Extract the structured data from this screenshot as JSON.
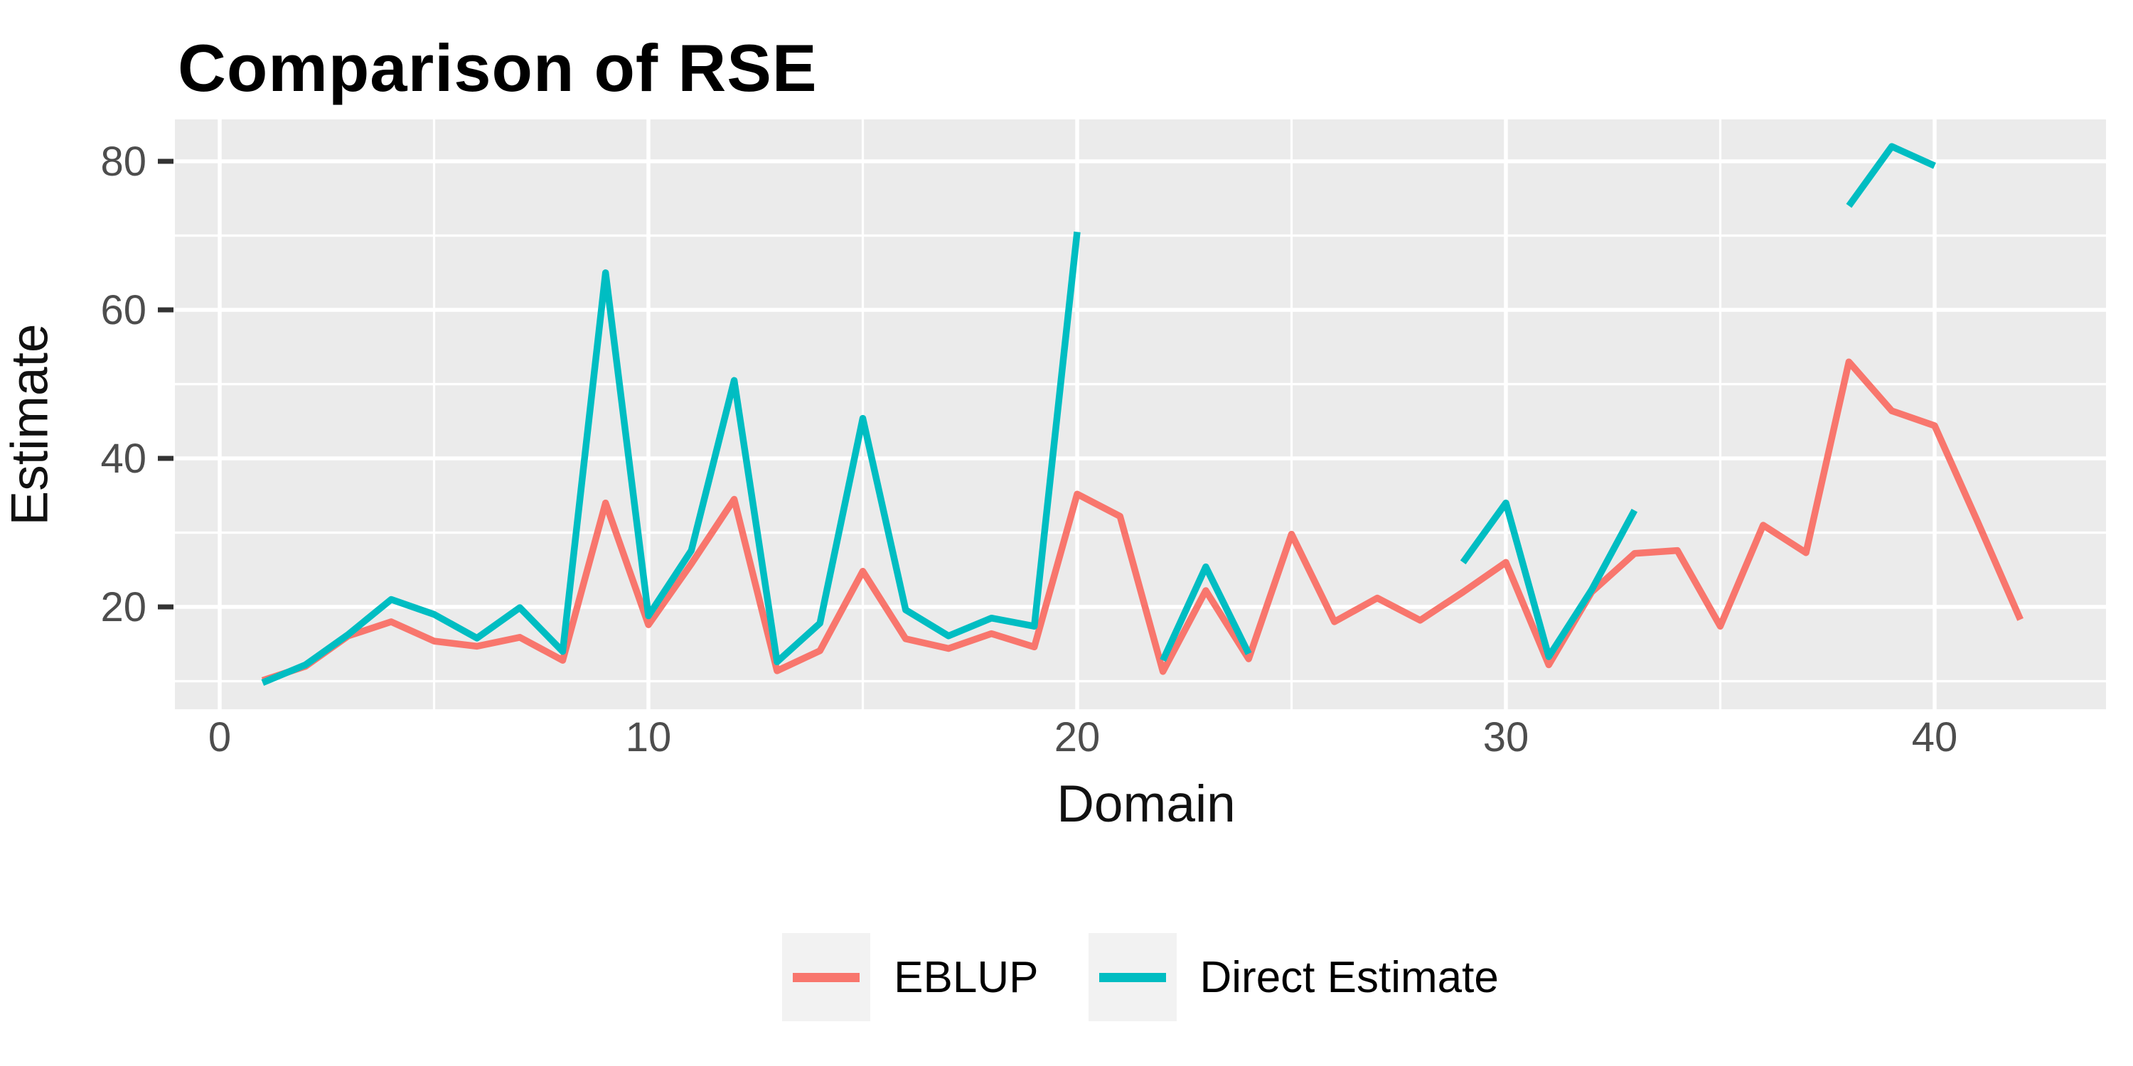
{
  "title": "Comparison of RSE",
  "x_axis": {
    "label": "Domain",
    "tick_labels": [
      "0",
      "10",
      "20",
      "30",
      "40"
    ]
  },
  "y_axis": {
    "label": "Estimate",
    "tick_labels": [
      "20",
      "40",
      "60",
      "80"
    ]
  },
  "legend": [
    {
      "label": "EBLUP",
      "color": "#F8766D"
    },
    {
      "label": "Direct Estimate",
      "color": "#00BDC2"
    }
  ],
  "colors": {
    "panel_background": "#EBEBEB",
    "gridline": "#FFFFFF",
    "tick_mark": "#333333",
    "tick_label": "#4D4D4D",
    "axis_title": "#111111",
    "title": "#000000",
    "legend_key_background": "#F2F2F2"
  },
  "chart_data": {
    "type": "line",
    "title": "Comparison of RSE",
    "xlabel": "Domain",
    "ylabel": "Estimate",
    "x": [
      1,
      2,
      3,
      4,
      5,
      6,
      7,
      8,
      9,
      10,
      11,
      12,
      13,
      14,
      15,
      16,
      17,
      18,
      19,
      20,
      21,
      22,
      23,
      24,
      25,
      26,
      27,
      28,
      29,
      30,
      31,
      32,
      33,
      34,
      35,
      36,
      37,
      38,
      39,
      40,
      41,
      42
    ],
    "series": [
      {
        "name": "EBLUP",
        "color": "#F8766D",
        "values": [
          10.1,
          12.0,
          16.1,
          18.0,
          15.4,
          14.7,
          15.9,
          12.8,
          34.0,
          17.6,
          25.8,
          34.5,
          11.4,
          14.1,
          24.8,
          15.7,
          14.4,
          16.4,
          14.6,
          35.2,
          32.2,
          11.3,
          22.2,
          13.0,
          29.8,
          18.0,
          21.2,
          18.2,
          22.0,
          26.0,
          12.2,
          22.0,
          27.2,
          27.6,
          17.4,
          31.0,
          27.3,
          53.0,
          46.4,
          44.4,
          31.5,
          18.3
        ]
      },
      {
        "name": "Direct Estimate",
        "color": "#00BDC2",
        "values": [
          9.8,
          12.2,
          16.3,
          21.0,
          19.0,
          15.8,
          19.9,
          14.0,
          65.0,
          18.8,
          27.6,
          50.5,
          12.6,
          17.8,
          45.4,
          19.6,
          16.1,
          18.5,
          17.4,
          70.5,
          null,
          12.8,
          25.4,
          13.7,
          null,
          null,
          null,
          null,
          26.0,
          34.0,
          13.3,
          22.3,
          33.0,
          null,
          null,
          null,
          null,
          74.0,
          82.0,
          79.4,
          null,
          null
        ]
      }
    ],
    "x_ticks": [
      0,
      10,
      20,
      30,
      40
    ],
    "y_ticks": [
      20,
      40,
      60,
      80
    ],
    "x_minor_ticks": [
      5,
      15,
      25,
      35
    ],
    "y_minor_ticks": [
      10,
      30,
      50,
      70
    ],
    "xlim": [
      -1.05,
      44.05
    ],
    "ylim": [
      6.2,
      85.6
    ],
    "grid": true,
    "legend_position": "bottom"
  }
}
